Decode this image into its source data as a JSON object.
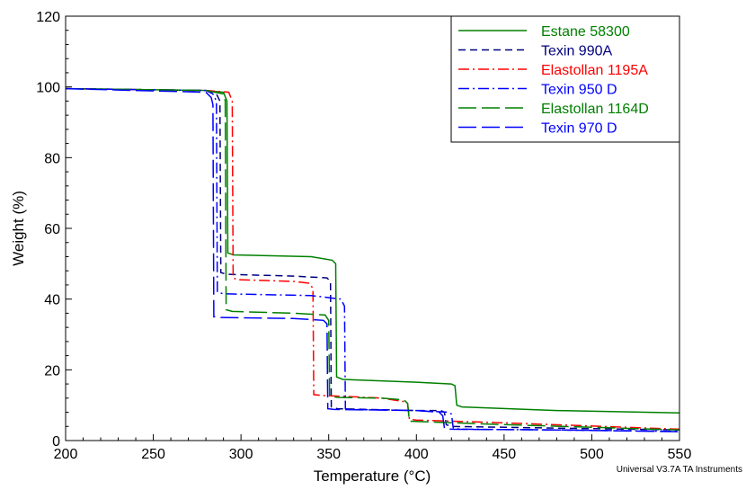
{
  "chart_data": {
    "type": "line",
    "title": "",
    "xlabel": "Temperature (°C)",
    "ylabel": "Weight (%)",
    "xlim": [
      200,
      550
    ],
    "ylim": [
      0,
      120
    ],
    "xticks": [
      "200",
      "250",
      "300",
      "350",
      "400",
      "450",
      "500",
      "550"
    ],
    "yticks": [
      "0",
      "20",
      "40",
      "60",
      "80",
      "100",
      "120"
    ],
    "grid": false,
    "legend_position": "top-right",
    "footer": "Universal V3.7A TA Instruments",
    "series": [
      {
        "name": "Estane 58300",
        "color": "#008000",
        "dash": "solid",
        "points": [
          [
            200,
            99.5
          ],
          [
            280,
            99
          ],
          [
            290,
            98.5
          ],
          [
            292,
            96
          ],
          [
            292.5,
            53
          ],
          [
            296,
            52.5
          ],
          [
            340,
            52
          ],
          [
            352,
            51
          ],
          [
            354,
            50
          ],
          [
            354.5,
            18
          ],
          [
            358,
            17.3
          ],
          [
            400,
            16.5
          ],
          [
            420,
            16
          ],
          [
            422,
            15.5
          ],
          [
            423,
            10
          ],
          [
            426,
            9.5
          ],
          [
            480,
            8.5
          ],
          [
            550,
            7.8
          ]
        ]
      },
      {
        "name": "Texin 990A",
        "color": "#000080",
        "dash": "dashed",
        "points": [
          [
            200,
            99.5
          ],
          [
            280,
            99
          ],
          [
            286,
            98
          ],
          [
            288,
            96
          ],
          [
            288.5,
            47.5
          ],
          [
            292,
            47
          ],
          [
            330,
            46.5
          ],
          [
            349,
            46
          ],
          [
            351,
            45
          ],
          [
            351.5,
            9.5
          ],
          [
            355,
            9
          ],
          [
            400,
            8.5
          ],
          [
            414,
            8.5
          ],
          [
            416,
            8
          ],
          [
            417,
            4.5
          ],
          [
            420,
            4
          ],
          [
            480,
            3.5
          ],
          [
            550,
            3
          ]
        ]
      },
      {
        "name": "Elastollan 1195A",
        "color": "#ff0000",
        "dash": "dashdot",
        "points": [
          [
            200,
            99.5
          ],
          [
            280,
            99
          ],
          [
            293,
            98.5
          ],
          [
            295,
            96
          ],
          [
            295.5,
            46
          ],
          [
            298,
            45.5
          ],
          [
            330,
            45
          ],
          [
            339,
            44.5
          ],
          [
            341,
            43
          ],
          [
            341.5,
            13
          ],
          [
            345,
            12.8
          ],
          [
            380,
            12
          ],
          [
            393,
            11
          ],
          [
            395,
            10.5
          ],
          [
            396,
            6
          ],
          [
            400,
            5.8
          ],
          [
            450,
            5
          ],
          [
            550,
            3.2
          ]
        ]
      },
      {
        "name": "Texin 950 D",
        "color": "#0000ff",
        "dash": "dashdot",
        "points": [
          [
            200,
            99.5
          ],
          [
            280,
            99
          ],
          [
            284,
            98
          ],
          [
            286,
            96
          ],
          [
            286.5,
            42
          ],
          [
            290,
            41.5
          ],
          [
            340,
            41
          ],
          [
            357,
            40
          ],
          [
            359,
            38
          ],
          [
            359.5,
            9
          ],
          [
            363,
            8.8
          ],
          [
            400,
            8.5
          ],
          [
            418,
            8
          ],
          [
            420,
            7.5
          ],
          [
            421,
            3.5
          ],
          [
            425,
            3.2
          ],
          [
            480,
            3
          ],
          [
            550,
            2.6
          ]
        ]
      },
      {
        "name": "Elastollan 1164D",
        "color": "#008000",
        "dash": "longdash",
        "points": [
          [
            200,
            99.5
          ],
          [
            280,
            99
          ],
          [
            290,
            98
          ],
          [
            291,
            96
          ],
          [
            291.5,
            37
          ],
          [
            295,
            36.5
          ],
          [
            330,
            36
          ],
          [
            348,
            35.5
          ],
          [
            350,
            34
          ],
          [
            350.5,
            12.5
          ],
          [
            355,
            12.2
          ],
          [
            380,
            12
          ],
          [
            393,
            11.5
          ],
          [
            395,
            10.5
          ],
          [
            396,
            5.5
          ],
          [
            400,
            5.4
          ],
          [
            450,
            4.5
          ],
          [
            550,
            3
          ]
        ]
      },
      {
        "name": "Texin 970 D",
        "color": "#0000ff",
        "dash": "longdash",
        "points": [
          [
            200,
            99.5
          ],
          [
            280,
            98.5
          ],
          [
            283,
            97
          ],
          [
            284,
            95
          ],
          [
            284.5,
            35
          ],
          [
            288,
            34.8
          ],
          [
            330,
            34.5
          ],
          [
            347,
            34
          ],
          [
            349,
            33
          ],
          [
            349.5,
            9
          ],
          [
            353,
            8.8
          ],
          [
            400,
            8.5
          ],
          [
            413,
            8
          ],
          [
            415,
            7
          ],
          [
            416,
            3.5
          ],
          [
            420,
            3.2
          ],
          [
            480,
            3
          ],
          [
            550,
            2.5
          ]
        ]
      }
    ]
  }
}
